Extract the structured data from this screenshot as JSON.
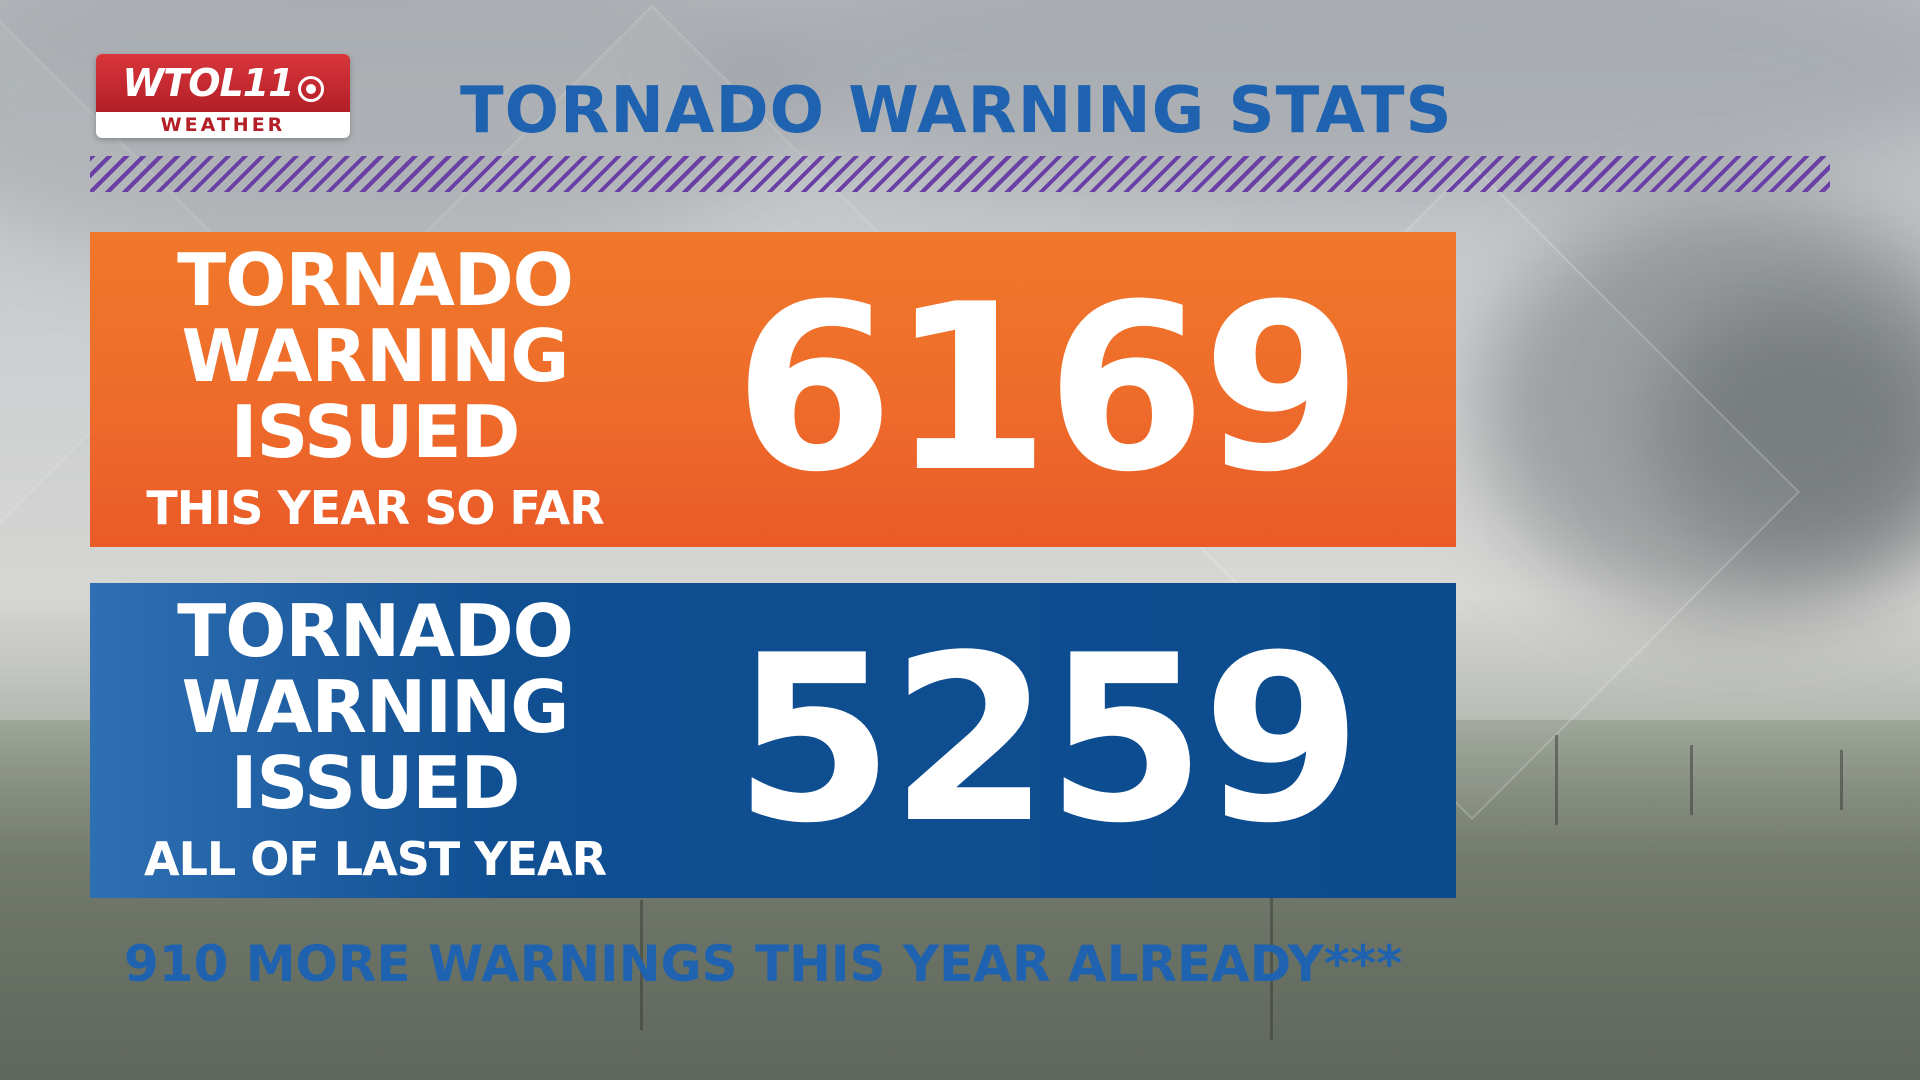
{
  "logo": {
    "name": "WTOL11",
    "sub": "WEATHER"
  },
  "title": "TORNADO WARNING STATS",
  "panels": [
    {
      "line1": "TORNADO",
      "line2": "WARNING",
      "line3": "ISSUED",
      "sub": "THIS YEAR SO FAR",
      "value": "6169",
      "color": "#ee6b2a"
    },
    {
      "line1": "TORNADO",
      "line2": "WARNING",
      "line3": "ISSUED",
      "sub": "ALL OF LAST YEAR",
      "value": "5259",
      "color": "#0b4b8e"
    }
  ],
  "footer": "910 MORE WARNINGS THIS YEAR ALREADY***",
  "colors": {
    "title": "#1f63b0",
    "hatch": "#6a3fa6",
    "logo_red": "#b31f27"
  }
}
